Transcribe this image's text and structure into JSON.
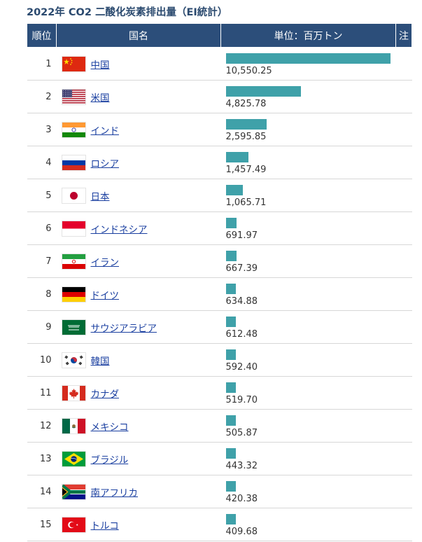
{
  "title": "2022年 CO2 二酸化炭素排出量（EI統計）",
  "headers": {
    "rank": "順位",
    "name": "国名",
    "unit": "単位：百万トン",
    "note": "注"
  },
  "colors": {
    "header_bg": "#2c4e7a",
    "bar": "#3fa1a9",
    "title": "#2b4a6f",
    "link": "#1a3fa0"
  },
  "rows": [
    {
      "rank": "1",
      "country": "中国",
      "flag": "china-flag-icon",
      "value": 10550.25,
      "value_text": "10,550.25"
    },
    {
      "rank": "2",
      "country": "米国",
      "flag": "usa-flag-icon",
      "value": 4825.78,
      "value_text": "4,825.78"
    },
    {
      "rank": "3",
      "country": "インド",
      "flag": "india-flag-icon",
      "value": 2595.85,
      "value_text": "2,595.85"
    },
    {
      "rank": "4",
      "country": "ロシア",
      "flag": "russia-flag-icon",
      "value": 1457.49,
      "value_text": "1,457.49"
    },
    {
      "rank": "5",
      "country": "日本",
      "flag": "japan-flag-icon",
      "value": 1065.71,
      "value_text": "1,065.71"
    },
    {
      "rank": "6",
      "country": "インドネシア",
      "flag": "indonesia-flag-icon",
      "value": 691.97,
      "value_text": "691.97"
    },
    {
      "rank": "7",
      "country": "イラン",
      "flag": "iran-flag-icon",
      "value": 667.39,
      "value_text": "667.39"
    },
    {
      "rank": "8",
      "country": "ドイツ",
      "flag": "germany-flag-icon",
      "value": 634.88,
      "value_text": "634.88"
    },
    {
      "rank": "9",
      "country": "サウジアラビア",
      "flag": "saudi-arabia-flag-icon",
      "value": 612.48,
      "value_text": "612.48"
    },
    {
      "rank": "10",
      "country": "韓国",
      "flag": "south-korea-flag-icon",
      "value": 592.4,
      "value_text": "592.40"
    },
    {
      "rank": "11",
      "country": "カナダ",
      "flag": "canada-flag-icon",
      "value": 519.7,
      "value_text": "519.70"
    },
    {
      "rank": "12",
      "country": "メキシコ",
      "flag": "mexico-flag-icon",
      "value": 505.87,
      "value_text": "505.87"
    },
    {
      "rank": "13",
      "country": "ブラジル",
      "flag": "brazil-flag-icon",
      "value": 443.32,
      "value_text": "443.32"
    },
    {
      "rank": "14",
      "country": "南アフリカ",
      "flag": "south-africa-flag-icon",
      "value": 420.38,
      "value_text": "420.38"
    },
    {
      "rank": "15",
      "country": "トルコ",
      "flag": "turkey-flag-icon",
      "value": 409.68,
      "value_text": "409.68"
    }
  ]
}
